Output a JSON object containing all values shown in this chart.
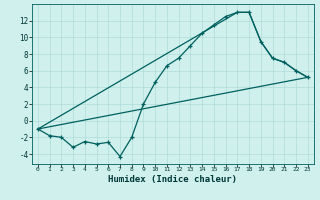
{
  "title": "",
  "xlabel": "Humidex (Indice chaleur)",
  "bg_color": "#cff0ec",
  "line_color": "#006060",
  "grid_color": "#b0ddd8",
  "xlim": [
    -0.5,
    23.5
  ],
  "ylim": [
    -5.2,
    14.0
  ],
  "xticks": [
    0,
    1,
    2,
    3,
    4,
    5,
    6,
    7,
    8,
    9,
    10,
    11,
    12,
    13,
    14,
    15,
    16,
    17,
    18,
    19,
    20,
    21,
    22,
    23
  ],
  "yticks": [
    -4,
    -2,
    0,
    2,
    4,
    6,
    8,
    10,
    12
  ],
  "series1_x": [
    0,
    1,
    2,
    3,
    4,
    5,
    6,
    7,
    8,
    9,
    10,
    11,
    12,
    13,
    14,
    15,
    16,
    17,
    18,
    19,
    20,
    21,
    22,
    23
  ],
  "series1_y": [
    -1.0,
    -1.8,
    -2.0,
    -3.2,
    -2.5,
    -2.8,
    -2.6,
    -4.3,
    -2.0,
    2.0,
    4.6,
    6.6,
    7.5,
    9.0,
    10.5,
    11.5,
    12.5,
    13.0,
    13.0,
    9.5,
    7.5,
    7.0,
    6.0,
    5.2
  ],
  "series2_x": [
    0,
    23
  ],
  "series2_y": [
    -1.0,
    5.2
  ],
  "series3_x": [
    0,
    17,
    18,
    19,
    20,
    21,
    22,
    23
  ],
  "series3_y": [
    -1.0,
    13.0,
    13.0,
    9.5,
    7.5,
    7.0,
    6.0,
    5.2
  ]
}
